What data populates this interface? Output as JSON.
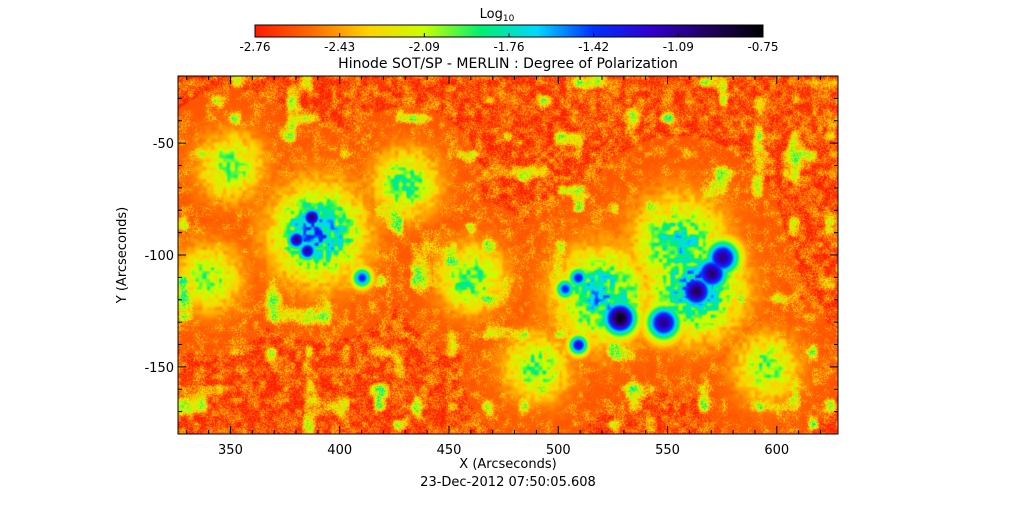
{
  "chart_data": {
    "type": "heatmap",
    "title": "Hinode SOT/SP - MERLIN : Degree of Polarization",
    "subtitle": "23-Dec-2012 07:50:05.608",
    "xlabel": "X (Arcseconds)",
    "ylabel": "Y (Arcseconds)",
    "xlim": [
      326,
      628
    ],
    "ylim": [
      -180,
      -20
    ],
    "xticks": [
      350,
      400,
      450,
      500,
      550,
      600
    ],
    "yticks": [
      -50,
      -100,
      -150
    ],
    "colorbar": {
      "label_main": "Log",
      "label_sub": "10",
      "min": -2.76,
      "max": -0.75,
      "ticks": [
        "-2.76",
        "-2.43",
        "-2.09",
        "-1.76",
        "-1.42",
        "-1.09",
        "-0.75"
      ],
      "colors": [
        "#ff1a00",
        "#ff6a00",
        "#ffd200",
        "#c8ff00",
        "#00f070",
        "#00d8ff",
        "#0030ff",
        "#3000d0",
        "#200060",
        "#000000"
      ]
    },
    "background_level": -2.6,
    "features": [
      {
        "kind": "sunspot",
        "x": 528,
        "y": -128,
        "peak": -0.8
      },
      {
        "kind": "sunspot",
        "x": 563,
        "y": -116,
        "peak": -0.95
      },
      {
        "kind": "sunspot",
        "x": 570,
        "y": -108,
        "peak": -1.0
      },
      {
        "kind": "sunspot",
        "x": 575,
        "y": -101,
        "peak": -1.05
      },
      {
        "kind": "sunspot",
        "x": 548,
        "y": -130,
        "peak": -1.05
      },
      {
        "kind": "pore",
        "x": 387,
        "y": -83,
        "peak": -1.0
      },
      {
        "kind": "pore",
        "x": 380,
        "y": -93,
        "peak": -1.05
      },
      {
        "kind": "pore",
        "x": 385,
        "y": -98,
        "peak": -1.1
      },
      {
        "kind": "pore",
        "x": 509,
        "y": -140,
        "peak": -1.2
      },
      {
        "kind": "pore",
        "x": 509,
        "y": -110,
        "peak": -1.3
      },
      {
        "kind": "pore",
        "x": 503,
        "y": -115,
        "peak": -1.35
      },
      {
        "kind": "pore",
        "x": 410,
        "y": -110,
        "peak": -1.35
      },
      {
        "kind": "plage",
        "x": 390,
        "y": -90,
        "peak": -1.6
      },
      {
        "kind": "plage",
        "x": 520,
        "y": -118,
        "peak": -1.7
      },
      {
        "kind": "plage",
        "x": 562,
        "y": -115,
        "peak": -1.6
      },
      {
        "kind": "plage",
        "x": 555,
        "y": -95,
        "peak": -1.8
      },
      {
        "kind": "network",
        "x": 430,
        "y": -68,
        "peak": -1.9
      },
      {
        "kind": "network",
        "x": 460,
        "y": -110,
        "peak": -1.9
      },
      {
        "kind": "network",
        "x": 490,
        "y": -150,
        "peak": -1.95
      },
      {
        "kind": "network",
        "x": 340,
        "y": -110,
        "peak": -2.0
      },
      {
        "kind": "network",
        "x": 350,
        "y": -60,
        "peak": -2.0
      },
      {
        "kind": "network",
        "x": 595,
        "y": -150,
        "peak": -2.0
      }
    ]
  }
}
